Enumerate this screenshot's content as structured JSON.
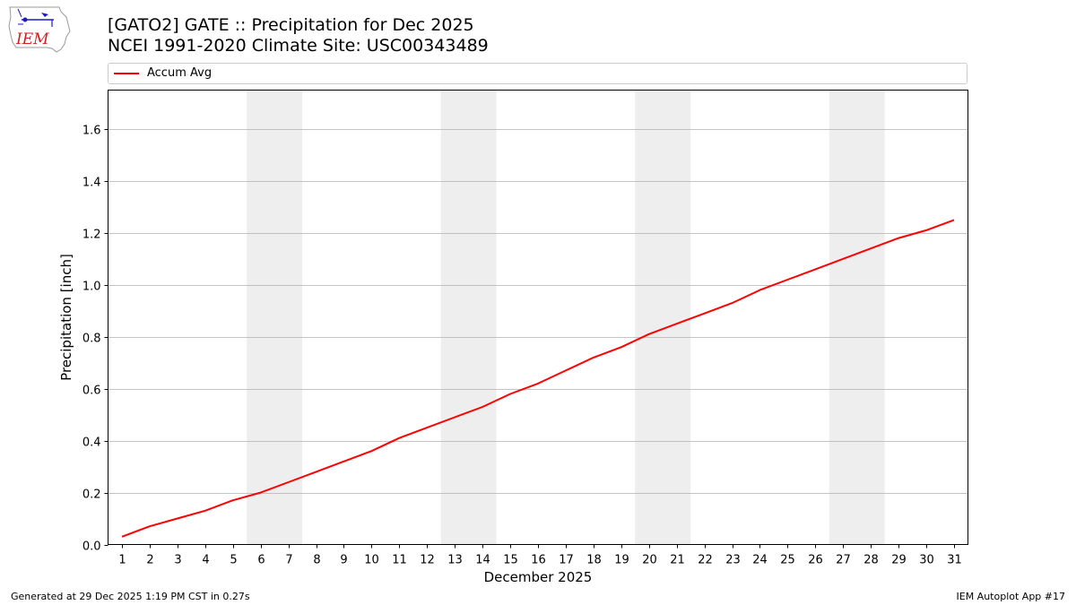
{
  "header": {
    "title_line1": "[GATO2] GATE :: Precipitation for Dec 2025",
    "title_line2": "NCEI 1991-2020 Climate Site: USC00343489"
  },
  "logo": {
    "text": "IEM",
    "icon": "iem-logo-icon"
  },
  "legend": {
    "label": "Accum Avg",
    "color": "#ff0000"
  },
  "footer": {
    "left": "Generated at 29 Dec 2025 1:19 PM CST in 0.27s",
    "right": "IEM Autoplot App #17"
  },
  "chart_data": {
    "type": "line",
    "xlabel": "December 2025",
    "ylabel": "Precipitation [inch]",
    "x": [
      1,
      2,
      3,
      4,
      5,
      6,
      7,
      8,
      9,
      10,
      11,
      12,
      13,
      14,
      15,
      16,
      17,
      18,
      19,
      20,
      21,
      22,
      23,
      24,
      25,
      26,
      27,
      28,
      29,
      30,
      31
    ],
    "series": [
      {
        "name": "Accum Avg",
        "color": "#ff0000",
        "values": [
          0.03,
          0.07,
          0.1,
          0.13,
          0.17,
          0.2,
          0.24,
          0.28,
          0.32,
          0.36,
          0.41,
          0.45,
          0.49,
          0.53,
          0.58,
          0.62,
          0.67,
          0.72,
          0.76,
          0.81,
          0.85,
          0.89,
          0.93,
          0.98,
          1.02,
          1.06,
          1.1,
          1.14,
          1.18,
          1.21,
          1.25
        ]
      }
    ],
    "xlim": [
      0.5,
      31.5
    ],
    "ylim": [
      0,
      1.75
    ],
    "yticks": [
      "0.0",
      "0.2",
      "0.4",
      "0.6",
      "0.8",
      "1.0",
      "1.2",
      "1.4",
      "1.6"
    ],
    "xticks": [
      "1",
      "2",
      "3",
      "4",
      "5",
      "6",
      "7",
      "8",
      "9",
      "10",
      "11",
      "12",
      "13",
      "14",
      "15",
      "16",
      "17",
      "18",
      "19",
      "20",
      "21",
      "22",
      "23",
      "24",
      "25",
      "26",
      "27",
      "28",
      "29",
      "30",
      "31"
    ],
    "weekend_bands": [
      [
        6,
        7
      ],
      [
        13,
        14
      ],
      [
        20,
        21
      ],
      [
        27,
        28
      ]
    ],
    "band_color": "#eeeeee",
    "grid": "horizontal"
  }
}
